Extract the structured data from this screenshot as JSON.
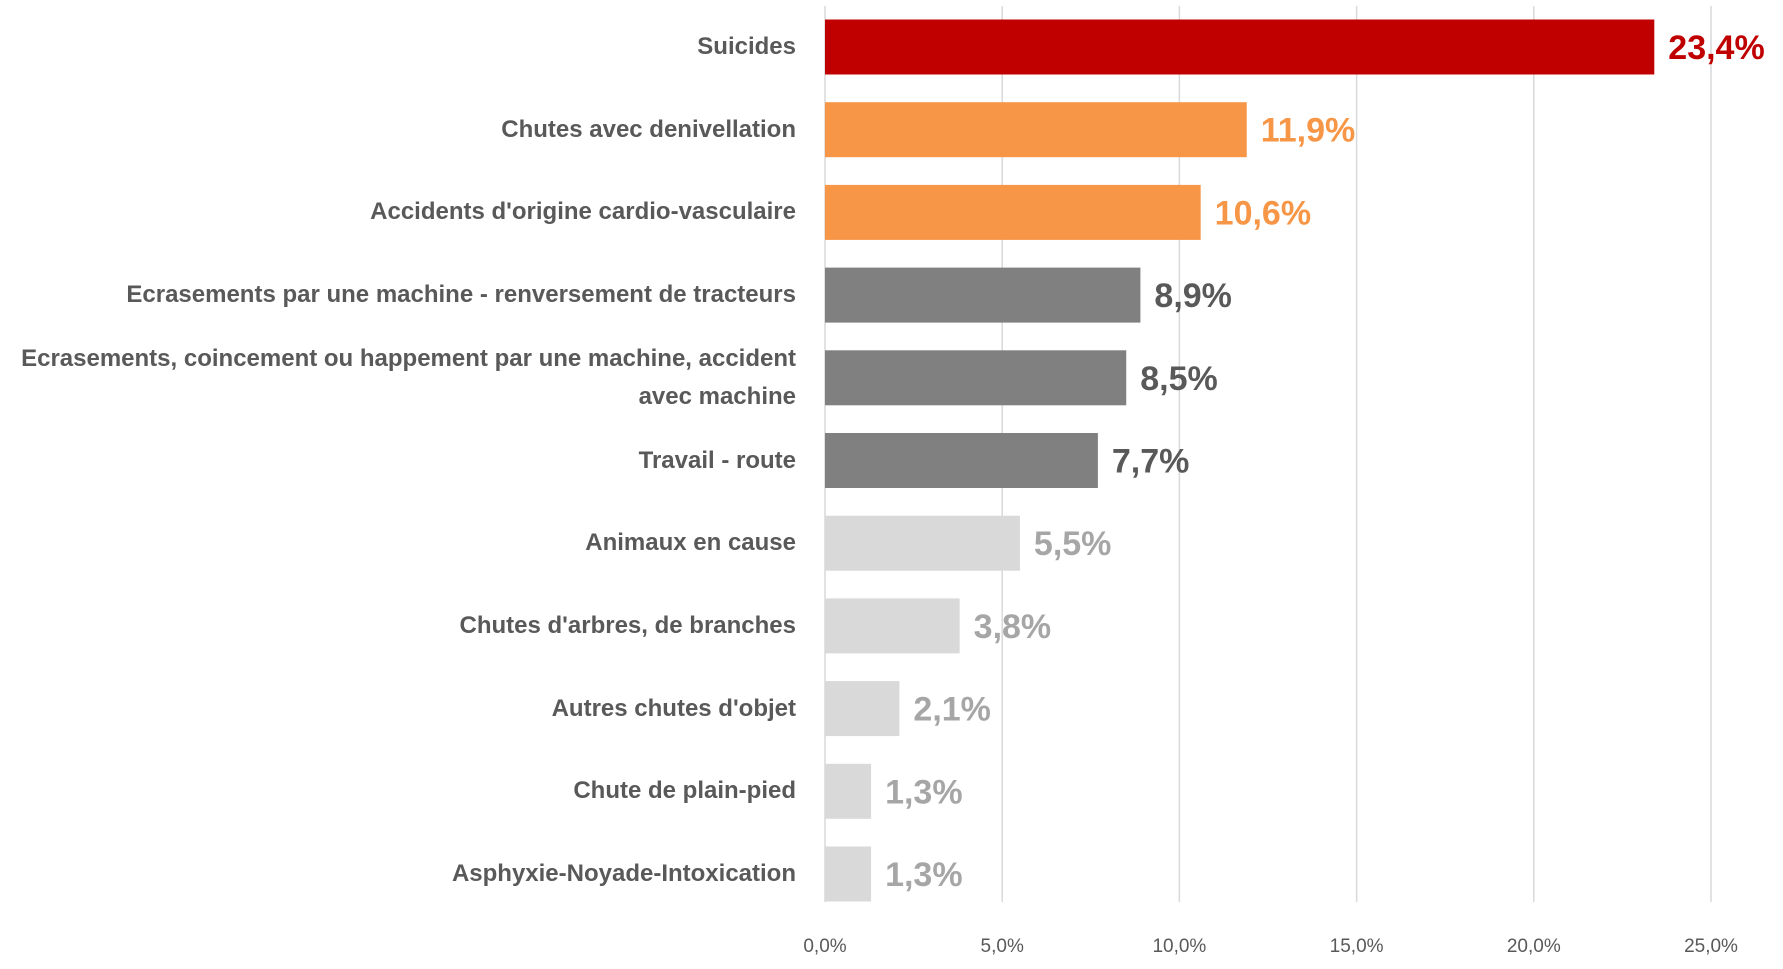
{
  "chart_data": {
    "type": "bar",
    "orientation": "horizontal",
    "categories": [
      "Suicides",
      "Chutes avec denivellation",
      "Accidents d'origine cardio-vasculaire",
      "Ecrasements par une machine - renversement de tracteurs",
      "Ecrasements, coincement ou happement par une machine, accident avec machine",
      "Travail - route",
      "Animaux en cause",
      "Chutes d'arbres, de branches",
      "Autres chutes d'objet",
      "Chute de plain-pied",
      "Asphyxie-Noyade-Intoxication"
    ],
    "values": [
      23.4,
      11.9,
      10.6,
      8.9,
      8.5,
      7.7,
      5.5,
      3.8,
      2.1,
      1.3,
      1.3
    ],
    "value_labels": [
      "23,4%",
      "11,9%",
      "10,6%",
      "8,9%",
      "8,5%",
      "7,7%",
      "5,5%",
      "3,8%",
      "2,1%",
      "1,3%",
      "1,3%"
    ],
    "colors": [
      "#c00000",
      "#f79646",
      "#f79646",
      "#808080",
      "#808080",
      "#808080",
      "#d9d9d9",
      "#d9d9d9",
      "#d9d9d9",
      "#d9d9d9",
      "#d9d9d9"
    ],
    "value_label_colors": [
      "#c00000",
      "#f79646",
      "#f79646",
      "#595959",
      "#595959",
      "#595959",
      "#a6a6a6",
      "#a6a6a6",
      "#a6a6a6",
      "#a6a6a6",
      "#a6a6a6"
    ],
    "xlim": [
      0,
      25
    ],
    "xticks": [
      {
        "value": 0,
        "label": "0,0%"
      },
      {
        "value": 5,
        "label": "5,0%"
      },
      {
        "value": 10,
        "label": "10,0%"
      },
      {
        "value": 15,
        "label": "15,0%"
      },
      {
        "value": 20,
        "label": "20,0%"
      },
      {
        "value": 25,
        "label": "25,0%"
      }
    ],
    "grid": true
  }
}
